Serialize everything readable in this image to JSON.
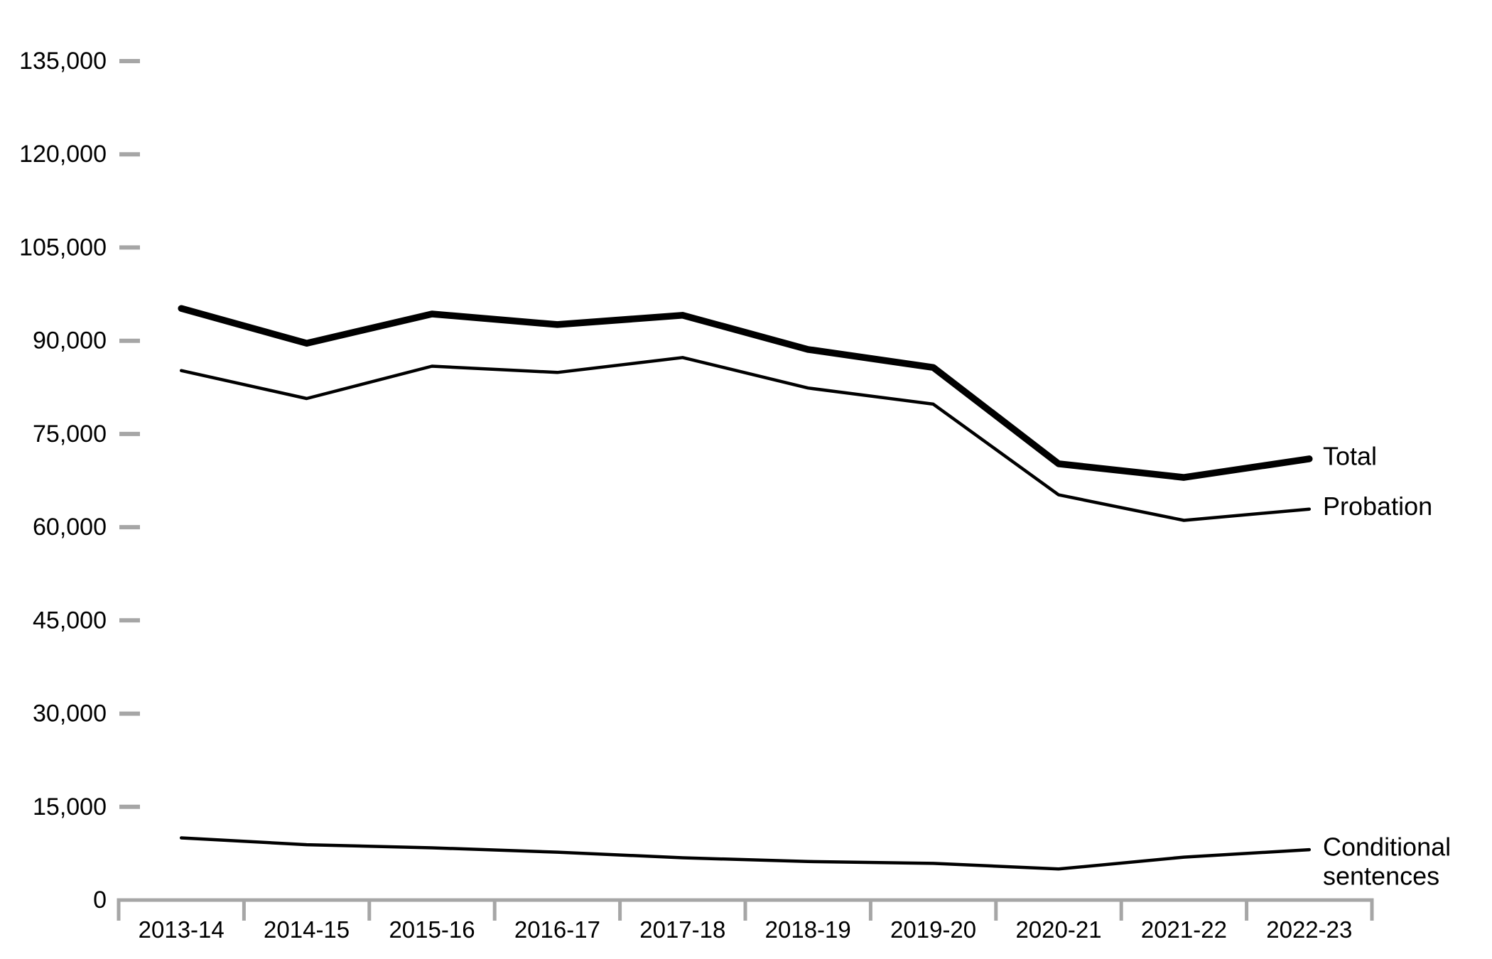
{
  "chart_data": {
    "type": "line",
    "title": "",
    "xlabel": "",
    "ylabel": "",
    "categories": [
      "2013-14",
      "2014-15",
      "2015-16",
      "2016-17",
      "2017-18",
      "2018-19",
      "2019-20",
      "2020-21",
      "2021-22",
      "2022-23"
    ],
    "series": [
      {
        "name": "Total",
        "label_lines": [
          "Total"
        ],
        "line_weight": "thick",
        "color": "#000000",
        "values": [
          95200,
          89600,
          94300,
          92600,
          94100,
          88600,
          85700,
          70200,
          68000,
          71000
        ]
      },
      {
        "name": "Probation",
        "label_lines": [
          "Probation"
        ],
        "line_weight": "thin",
        "color": "#000000",
        "values": [
          85200,
          80700,
          85900,
          84900,
          87300,
          82400,
          79800,
          65200,
          61100,
          62900
        ]
      },
      {
        "name": "Conditional sentences",
        "label_lines": [
          "Conditional",
          "sentences"
        ],
        "line_weight": "thin",
        "color": "#000000",
        "values": [
          10000,
          8900,
          8400,
          7700,
          6800,
          6200,
          5900,
          5000,
          6900,
          8100
        ]
      }
    ],
    "ylim": [
      0,
      135000
    ],
    "ytick_interval": 15000,
    "ytick_labels": [
      "0",
      "15,000",
      "30,000",
      "45,000",
      "60,000",
      "75,000",
      "90,000",
      "105,000",
      "120,000",
      "135,000"
    ],
    "grid": false,
    "legend_position": "inline-right-of-line-ends",
    "axis_color": "#a6a6a6",
    "text_color": "#000000"
  }
}
